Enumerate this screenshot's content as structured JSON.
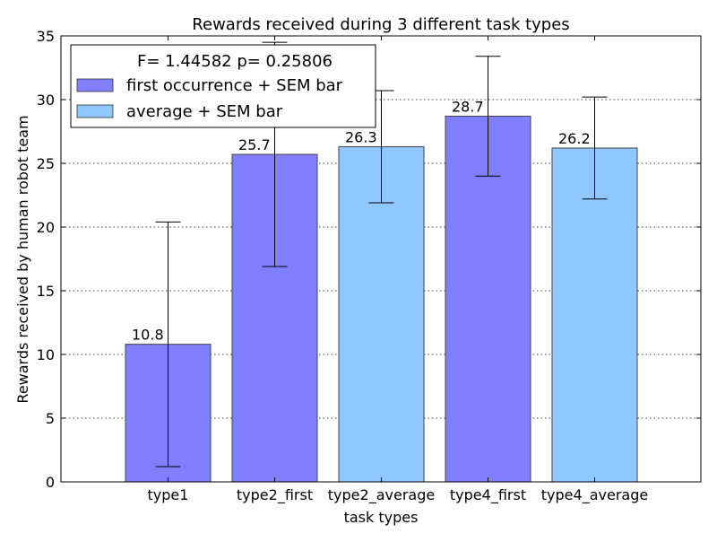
{
  "chart_data": {
    "type": "bar",
    "title": "Rewards received during 3 different task types",
    "xlabel": "task types",
    "ylabel": "Rewards received by human robot team",
    "ylim": [
      0,
      35
    ],
    "yticks": [
      0,
      5,
      10,
      15,
      20,
      25,
      30,
      35
    ],
    "grid": "horizontal dotted",
    "legend_placement": "top-left",
    "annotation": "F= 1.44582 p= 0.25806",
    "categories": [
      "type1",
      "type2_first",
      "type2_average",
      "type4_first",
      "type4_average"
    ],
    "values": [
      10.8,
      25.7,
      26.3,
      28.7,
      26.2
    ],
    "value_labels": [
      "10.8",
      "25.7",
      "26.3",
      "28.7",
      "26.2"
    ],
    "errors": [
      9.6,
      8.8,
      4.4,
      4.7,
      4.0
    ],
    "bar_series": [
      "first",
      "first",
      "average",
      "first",
      "average"
    ],
    "series": [
      {
        "key": "first",
        "name": "first occurrence + SEM bar",
        "color": "#7f7fff"
      },
      {
        "key": "average",
        "name": "average + SEM bar",
        "color": "#8fc7ff"
      }
    ]
  }
}
